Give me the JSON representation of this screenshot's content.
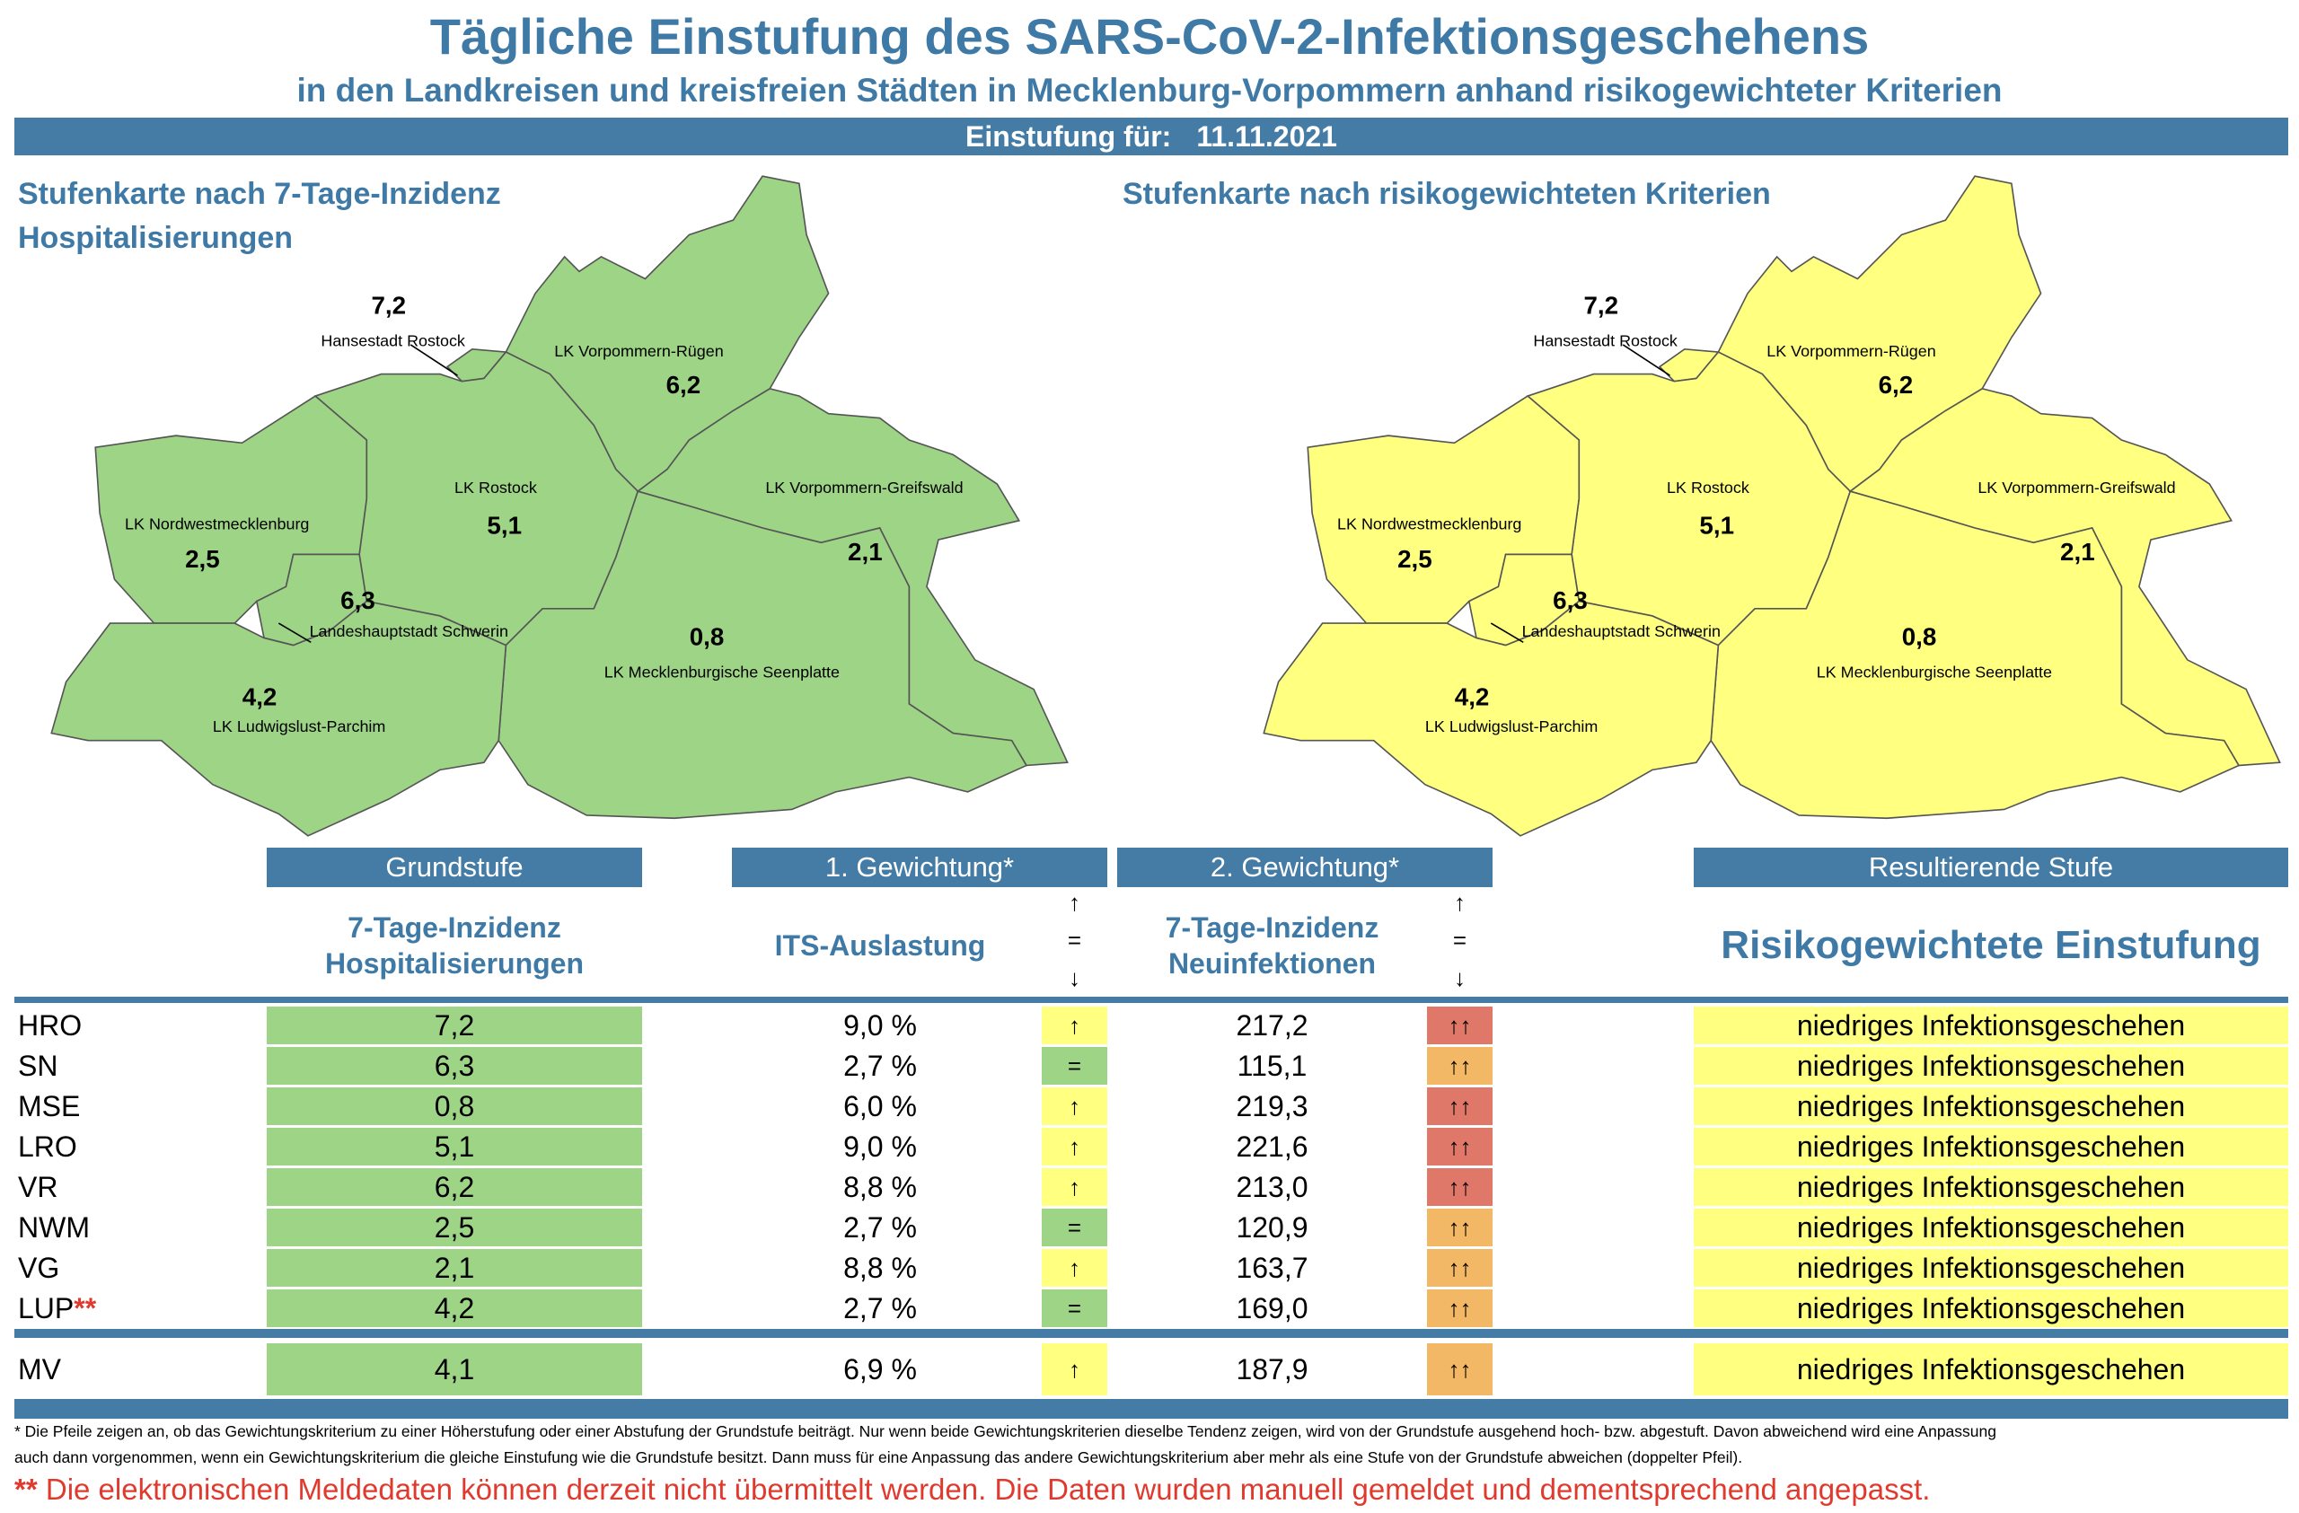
{
  "header": {
    "title": "Tägliche Einstufung des SARS-CoV-2-Infektionsgeschehens",
    "subtitle": "in den Landkreisen und kreisfreien Städten in Mecklenburg-Vorpommern anhand risikogewichteter Kriterien",
    "date_label": "Einstufung für:",
    "date": "11.11.2021"
  },
  "maps": {
    "left_title_line1": "Stufenkarte nach 7-Tage-Inzidenz",
    "left_title_line2": "Hospitalisierungen",
    "right_title": "Stufenkarte nach risikogewichteten Kriterien",
    "left_fill": "#9dd486",
    "right_fill": "#ffff80",
    "regions": [
      {
        "id": "HRO",
        "name": "Hansestadt Rostock",
        "value": "7,2"
      },
      {
        "id": "VR",
        "name": "LK Vorpommern-Rügen",
        "value": "6,2"
      },
      {
        "id": "LRO",
        "name": "LK Rostock",
        "value": "5,1"
      },
      {
        "id": "VG",
        "name": "LK Vorpommern-Greifswald",
        "value": "2,1"
      },
      {
        "id": "NWM",
        "name": "LK Nordwestmecklenburg",
        "value": "2,5"
      },
      {
        "id": "SN",
        "name": "Landeshauptstadt Schwerin",
        "value": "6,3"
      },
      {
        "id": "MSE",
        "name": "LK Mecklenburgische Seenplatte",
        "value": "0,8"
      },
      {
        "id": "LUP",
        "name": "LK Ludwigslust-Parchim",
        "value": "4,2"
      }
    ]
  },
  "table": {
    "headers": {
      "grundstufe": "Grundstufe",
      "gew1": "1. Gewichtung*",
      "gew2": "2. Gewichtung*",
      "result": "Resultierende Stufe"
    },
    "subheaders": {
      "grundstufe_1": "7-Tage-Inzidenz",
      "grundstufe_2": "Hospitalisierungen",
      "its": "ITS-Auslastung",
      "neu_1": "7-Tage-Inzidenz",
      "neu_2": "Neuinfektionen",
      "result": "Risikogewichtete Einstufung"
    },
    "trend_key": {
      "up": "↑",
      "equal": "=",
      "down": "↓"
    },
    "colors": {
      "green": "#9dd486",
      "yellow": "#ffff80",
      "red": "#e0786a",
      "orange": "#f3b865"
    },
    "rows": [
      {
        "label": "HRO",
        "mark": "",
        "grund": "7,2",
        "its": "9,0 %",
        "its_trend": "↑",
        "its_color": "yellow",
        "neu": "217,2",
        "neu_trend": "↑↑",
        "neu_color": "red",
        "result": "niedriges Infektionsgeschehen"
      },
      {
        "label": "SN",
        "mark": "",
        "grund": "6,3",
        "its": "2,7 %",
        "its_trend": "=",
        "its_color": "green",
        "neu": "115,1",
        "neu_trend": "↑↑",
        "neu_color": "orange",
        "result": "niedriges Infektionsgeschehen"
      },
      {
        "label": "MSE",
        "mark": "",
        "grund": "0,8",
        "its": "6,0 %",
        "its_trend": "↑",
        "its_color": "yellow",
        "neu": "219,3",
        "neu_trend": "↑↑",
        "neu_color": "red",
        "result": "niedriges Infektionsgeschehen"
      },
      {
        "label": "LRO",
        "mark": "",
        "grund": "5,1",
        "its": "9,0 %",
        "its_trend": "↑",
        "its_color": "yellow",
        "neu": "221,6",
        "neu_trend": "↑↑",
        "neu_color": "red",
        "result": "niedriges Infektionsgeschehen"
      },
      {
        "label": "VR",
        "mark": "",
        "grund": "6,2",
        "its": "8,8 %",
        "its_trend": "↑",
        "its_color": "yellow",
        "neu": "213,0",
        "neu_trend": "↑↑",
        "neu_color": "red",
        "result": "niedriges Infektionsgeschehen"
      },
      {
        "label": "NWM",
        "mark": "",
        "grund": "2,5",
        "its": "2,7 %",
        "its_trend": "=",
        "its_color": "green",
        "neu": "120,9",
        "neu_trend": "↑↑",
        "neu_color": "orange",
        "result": "niedriges Infektionsgeschehen"
      },
      {
        "label": "VG",
        "mark": "",
        "grund": "2,1",
        "its": "8,8 %",
        "its_trend": "↑",
        "its_color": "yellow",
        "neu": "163,7",
        "neu_trend": "↑↑",
        "neu_color": "orange",
        "result": "niedriges Infektionsgeschehen"
      },
      {
        "label": "LUP",
        "mark": "**",
        "grund": "4,2",
        "its": "2,7 %",
        "its_trend": "=",
        "its_color": "green",
        "neu": "169,0",
        "neu_trend": "↑↑",
        "neu_color": "orange",
        "result": "niedriges Infektionsgeschehen"
      }
    ],
    "total": {
      "label": "MV",
      "mark": "",
      "grund": "4,1",
      "its": "6,9 %",
      "its_trend": "↑",
      "its_color": "yellow",
      "neu": "187,9",
      "neu_trend": "↑↑",
      "neu_color": "orange",
      "result": "niedriges Infektionsgeschehen"
    }
  },
  "footer": {
    "note_line1": "* Die Pfeile zeigen an, ob das Gewichtungskriterium zu einer Höherstufung oder einer Abstufung der Grundstufe beiträgt. Nur wenn beide Gewichtungskriterien dieselbe Tendenz zeigen, wird von der Grundstufe ausgehend hoch- bzw. abgestuft.  Davon abweichend wird eine Anpassung",
    "note_line2": "auch dann vorgenommen, wenn ein Gewichtungskriterium die gleiche Einstufung wie die Grundstufe besitzt. Dann muss für eine Anpassung das andere Gewichtungskriterium aber mehr als eine Stufe von der Grundstufe abweichen (doppelter Pfeil).",
    "red_mark": "**",
    "red_note": " Die elektronischen Meldedaten können derzeit nicht übermittelt werden. Die Daten wurden manuell gemeldet und dementsprechend angepasst."
  }
}
